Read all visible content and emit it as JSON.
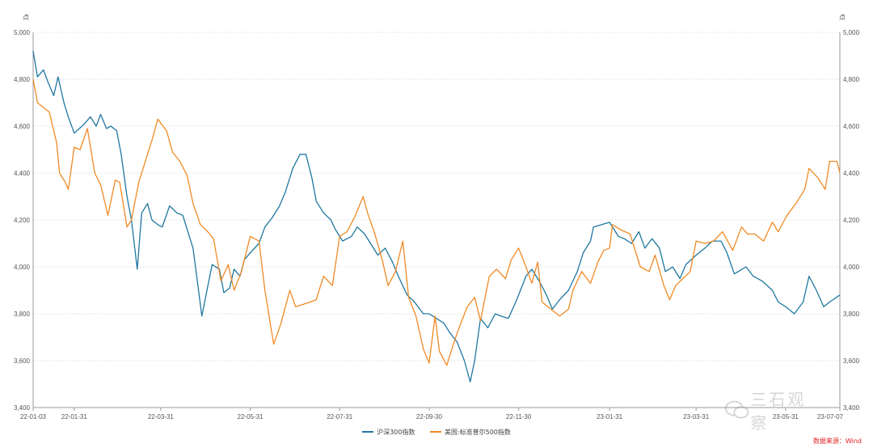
{
  "chart_data": {
    "type": "line",
    "title": "",
    "y_unit_left": "点",
    "y_unit_right": "点",
    "ylim": [
      3400,
      5000
    ],
    "yticks": [
      3400,
      3600,
      3800,
      4000,
      4200,
      4400,
      4600,
      4800,
      5000
    ],
    "ytick_labels": [
      "3,400",
      "3,600",
      "3,800",
      "4,000",
      "4,200",
      "4,400",
      "4,600",
      "4,800",
      "5,000"
    ],
    "x_range": [
      "2022-01-03",
      "2023-07-07"
    ],
    "xtick_labels": [
      "22-01-03",
      "22-01-31",
      "22-03-31",
      "22-05-31",
      "22-07-31",
      "22-09-30",
      "22-11-30",
      "23-01-31",
      "23-03-31",
      "23-05-31",
      "23-07-07"
    ],
    "xtick_dates": [
      "2022-01-03",
      "2022-01-31",
      "2022-03-31",
      "2022-05-31",
      "2022-07-31",
      "2022-09-30",
      "2022-11-30",
      "2023-01-31",
      "2023-03-31",
      "2023-05-31",
      "2023-07-07"
    ],
    "grid": true,
    "legend_position": "bottom",
    "series": [
      {
        "name": "沪深300指数",
        "color": "#1f77a0",
        "points": [
          [
            "2022-01-03",
            4920
          ],
          [
            "2022-01-06",
            4810
          ],
          [
            "2022-01-10",
            4840
          ],
          [
            "2022-01-13",
            4790
          ],
          [
            "2022-01-17",
            4730
          ],
          [
            "2022-01-20",
            4810
          ],
          [
            "2022-01-24",
            4700
          ],
          [
            "2022-01-27",
            4640
          ],
          [
            "2022-01-31",
            4570
          ],
          [
            "2022-02-07",
            4610
          ],
          [
            "2022-02-11",
            4640
          ],
          [
            "2022-02-15",
            4600
          ],
          [
            "2022-02-18",
            4650
          ],
          [
            "2022-02-22",
            4590
          ],
          [
            "2022-02-25",
            4600
          ],
          [
            "2022-03-01",
            4580
          ],
          [
            "2022-03-04",
            4480
          ],
          [
            "2022-03-08",
            4300
          ],
          [
            "2022-03-11",
            4200
          ],
          [
            "2022-03-15",
            3990
          ],
          [
            "2022-03-18",
            4230
          ],
          [
            "2022-03-22",
            4270
          ],
          [
            "2022-03-25",
            4200
          ],
          [
            "2022-03-29",
            4180
          ],
          [
            "2022-04-01",
            4170
          ],
          [
            "2022-04-06",
            4260
          ],
          [
            "2022-04-11",
            4230
          ],
          [
            "2022-04-15",
            4220
          ],
          [
            "2022-04-19",
            4140
          ],
          [
            "2022-04-22",
            4080
          ],
          [
            "2022-04-26",
            3890
          ],
          [
            "2022-04-28",
            3790
          ],
          [
            "2022-05-05",
            4010
          ],
          [
            "2022-05-10",
            3990
          ],
          [
            "2022-05-13",
            3890
          ],
          [
            "2022-05-17",
            3910
          ],
          [
            "2022-05-20",
            3990
          ],
          [
            "2022-05-24",
            3960
          ],
          [
            "2022-05-27",
            4030
          ],
          [
            "2022-05-31",
            4060
          ],
          [
            "2022-06-06",
            4100
          ],
          [
            "2022-06-10",
            4170
          ],
          [
            "2022-06-15",
            4210
          ],
          [
            "2022-06-20",
            4260
          ],
          [
            "2022-06-24",
            4320
          ],
          [
            "2022-06-29",
            4420
          ],
          [
            "2022-07-04",
            4480
          ],
          [
            "2022-07-08",
            4480
          ],
          [
            "2022-07-12",
            4380
          ],
          [
            "2022-07-15",
            4280
          ],
          [
            "2022-07-20",
            4230
          ],
          [
            "2022-07-25",
            4200
          ],
          [
            "2022-07-28",
            4160
          ],
          [
            "2022-08-02",
            4110
          ],
          [
            "2022-08-08",
            4130
          ],
          [
            "2022-08-12",
            4170
          ],
          [
            "2022-08-17",
            4140
          ],
          [
            "2022-08-22",
            4090
          ],
          [
            "2022-08-26",
            4050
          ],
          [
            "2022-08-31",
            4080
          ],
          [
            "2022-09-05",
            4020
          ],
          [
            "2022-09-09",
            3960
          ],
          [
            "2022-09-15",
            3880
          ],
          [
            "2022-09-20",
            3850
          ],
          [
            "2022-09-26",
            3800
          ],
          [
            "2022-09-30",
            3800
          ],
          [
            "2022-10-10",
            3760
          ],
          [
            "2022-10-14",
            3720
          ],
          [
            "2022-10-19",
            3680
          ],
          [
            "2022-10-24",
            3600
          ],
          [
            "2022-10-28",
            3510
          ],
          [
            "2022-10-31",
            3600
          ],
          [
            "2022-11-04",
            3780
          ],
          [
            "2022-11-09",
            3740
          ],
          [
            "2022-11-14",
            3800
          ],
          [
            "2022-11-18",
            3790
          ],
          [
            "2022-11-23",
            3780
          ],
          [
            "2022-11-28",
            3850
          ],
          [
            "2022-11-30",
            3880
          ],
          [
            "2022-12-05",
            3960
          ],
          [
            "2022-12-09",
            3990
          ],
          [
            "2022-12-14",
            3940
          ],
          [
            "2022-12-19",
            3880
          ],
          [
            "2022-12-23",
            3820
          ],
          [
            "2022-12-28",
            3860
          ],
          [
            "2023-01-03",
            3900
          ],
          [
            "2023-01-09",
            3980
          ],
          [
            "2023-01-13",
            4060
          ],
          [
            "2023-01-18",
            4110
          ],
          [
            "2023-01-20",
            4170
          ],
          [
            "2023-01-31",
            4190
          ],
          [
            "2023-02-06",
            4130
          ],
          [
            "2023-02-10",
            4120
          ],
          [
            "2023-02-15",
            4100
          ],
          [
            "2023-02-20",
            4150
          ],
          [
            "2023-02-24",
            4080
          ],
          [
            "2023-03-01",
            4120
          ],
          [
            "2023-03-06",
            4080
          ],
          [
            "2023-03-10",
            3980
          ],
          [
            "2023-03-15",
            4000
          ],
          [
            "2023-03-20",
            3950
          ],
          [
            "2023-03-24",
            4010
          ],
          [
            "2023-03-31",
            4050
          ],
          [
            "2023-04-06",
            4080
          ],
          [
            "2023-04-11",
            4110
          ],
          [
            "2023-04-17",
            4110
          ],
          [
            "2023-04-21",
            4060
          ],
          [
            "2023-04-26",
            3970
          ],
          [
            "2023-05-04",
            4000
          ],
          [
            "2023-05-09",
            3960
          ],
          [
            "2023-05-15",
            3940
          ],
          [
            "2023-05-22",
            3900
          ],
          [
            "2023-05-26",
            3850
          ],
          [
            "2023-05-31",
            3830
          ],
          [
            "2023-06-06",
            3800
          ],
          [
            "2023-06-12",
            3850
          ],
          [
            "2023-06-16",
            3960
          ],
          [
            "2023-06-21",
            3900
          ],
          [
            "2023-06-26",
            3830
          ],
          [
            "2023-06-30",
            3850
          ],
          [
            "2023-07-07",
            3880
          ]
        ]
      },
      {
        "name": "美国:标准普尔500指数",
        "color": "#f08a24",
        "points": [
          [
            "2022-01-03",
            4800
          ],
          [
            "2022-01-06",
            4700
          ],
          [
            "2022-01-10",
            4680
          ],
          [
            "2022-01-14",
            4660
          ],
          [
            "2022-01-19",
            4530
          ],
          [
            "2022-01-21",
            4400
          ],
          [
            "2022-01-25",
            4360
          ],
          [
            "2022-01-27",
            4330
          ],
          [
            "2022-01-31",
            4510
          ],
          [
            "2022-02-04",
            4500
          ],
          [
            "2022-02-09",
            4590
          ],
          [
            "2022-02-14",
            4400
          ],
          [
            "2022-02-18",
            4350
          ],
          [
            "2022-02-23",
            4220
          ],
          [
            "2022-02-28",
            4370
          ],
          [
            "2022-03-03",
            4360
          ],
          [
            "2022-03-08",
            4170
          ],
          [
            "2022-03-11",
            4200
          ],
          [
            "2022-03-16",
            4360
          ],
          [
            "2022-03-21",
            4460
          ],
          [
            "2022-03-25",
            4540
          ],
          [
            "2022-03-29",
            4630
          ],
          [
            "2022-04-04",
            4580
          ],
          [
            "2022-04-08",
            4490
          ],
          [
            "2022-04-13",
            4450
          ],
          [
            "2022-04-18",
            4390
          ],
          [
            "2022-04-22",
            4270
          ],
          [
            "2022-04-27",
            4180
          ],
          [
            "2022-05-02",
            4150
          ],
          [
            "2022-05-06",
            4120
          ],
          [
            "2022-05-11",
            3940
          ],
          [
            "2022-05-16",
            4010
          ],
          [
            "2022-05-20",
            3900
          ],
          [
            "2022-05-25",
            3980
          ],
          [
            "2022-05-31",
            4130
          ],
          [
            "2022-06-06",
            4110
          ],
          [
            "2022-06-10",
            3900
          ],
          [
            "2022-06-16",
            3670
          ],
          [
            "2022-06-21",
            3760
          ],
          [
            "2022-06-27",
            3900
          ],
          [
            "2022-07-01",
            3830
          ],
          [
            "2022-07-06",
            3840
          ],
          [
            "2022-07-11",
            3850
          ],
          [
            "2022-07-15",
            3860
          ],
          [
            "2022-07-20",
            3960
          ],
          [
            "2022-07-26",
            3920
          ],
          [
            "2022-07-31",
            4130
          ],
          [
            "2022-08-05",
            4150
          ],
          [
            "2022-08-10",
            4210
          ],
          [
            "2022-08-16",
            4300
          ],
          [
            "2022-08-19",
            4230
          ],
          [
            "2022-08-24",
            4140
          ],
          [
            "2022-08-29",
            4030
          ],
          [
            "2022-09-02",
            3920
          ],
          [
            "2022-09-07",
            3980
          ],
          [
            "2022-09-12",
            4110
          ],
          [
            "2022-09-16",
            3870
          ],
          [
            "2022-09-21",
            3790
          ],
          [
            "2022-09-26",
            3650
          ],
          [
            "2022-09-30",
            3590
          ],
          [
            "2022-10-04",
            3790
          ],
          [
            "2022-10-07",
            3640
          ],
          [
            "2022-10-12",
            3580
          ],
          [
            "2022-10-17",
            3680
          ],
          [
            "2022-10-21",
            3750
          ],
          [
            "2022-10-26",
            3830
          ],
          [
            "2022-10-31",
            3870
          ],
          [
            "2022-11-04",
            3770
          ],
          [
            "2022-11-10",
            3960
          ],
          [
            "2022-11-15",
            3990
          ],
          [
            "2022-11-21",
            3950
          ],
          [
            "2022-11-25",
            4030
          ],
          [
            "2022-11-30",
            4080
          ],
          [
            "2022-12-05",
            4000
          ],
          [
            "2022-12-09",
            3930
          ],
          [
            "2022-12-13",
            4020
          ],
          [
            "2022-12-16",
            3850
          ],
          [
            "2022-12-22",
            3820
          ],
          [
            "2022-12-28",
            3790
          ],
          [
            "2023-01-03",
            3820
          ],
          [
            "2023-01-06",
            3900
          ],
          [
            "2023-01-12",
            3980
          ],
          [
            "2023-01-18",
            3930
          ],
          [
            "2023-01-23",
            4020
          ],
          [
            "2023-01-27",
            4070
          ],
          [
            "2023-01-31",
            4080
          ],
          [
            "2023-02-02",
            4180
          ],
          [
            "2023-02-07",
            4160
          ],
          [
            "2023-02-14",
            4140
          ],
          [
            "2023-02-21",
            4000
          ],
          [
            "2023-02-27",
            3980
          ],
          [
            "2023-03-03",
            4050
          ],
          [
            "2023-03-09",
            3920
          ],
          [
            "2023-03-13",
            3860
          ],
          [
            "2023-03-17",
            3920
          ],
          [
            "2023-03-22",
            3950
          ],
          [
            "2023-03-27",
            3980
          ],
          [
            "2023-03-31",
            4110
          ],
          [
            "2023-04-06",
            4100
          ],
          [
            "2023-04-12",
            4110
          ],
          [
            "2023-04-18",
            4150
          ],
          [
            "2023-04-25",
            4070
          ],
          [
            "2023-05-01",
            4170
          ],
          [
            "2023-05-05",
            4140
          ],
          [
            "2023-05-10",
            4140
          ],
          [
            "2023-05-16",
            4110
          ],
          [
            "2023-05-22",
            4190
          ],
          [
            "2023-05-26",
            4150
          ],
          [
            "2023-06-01",
            4220
          ],
          [
            "2023-06-07",
            4270
          ],
          [
            "2023-06-13",
            4330
          ],
          [
            "2023-06-16",
            4420
          ],
          [
            "2023-06-22",
            4380
          ],
          [
            "2023-06-27",
            4330
          ],
          [
            "2023-06-30",
            4450
          ],
          [
            "2023-07-05",
            4450
          ],
          [
            "2023-07-07",
            4400
          ]
        ]
      }
    ]
  },
  "source_label": "数据来源：Wind",
  "watermark_text": "三石观察"
}
